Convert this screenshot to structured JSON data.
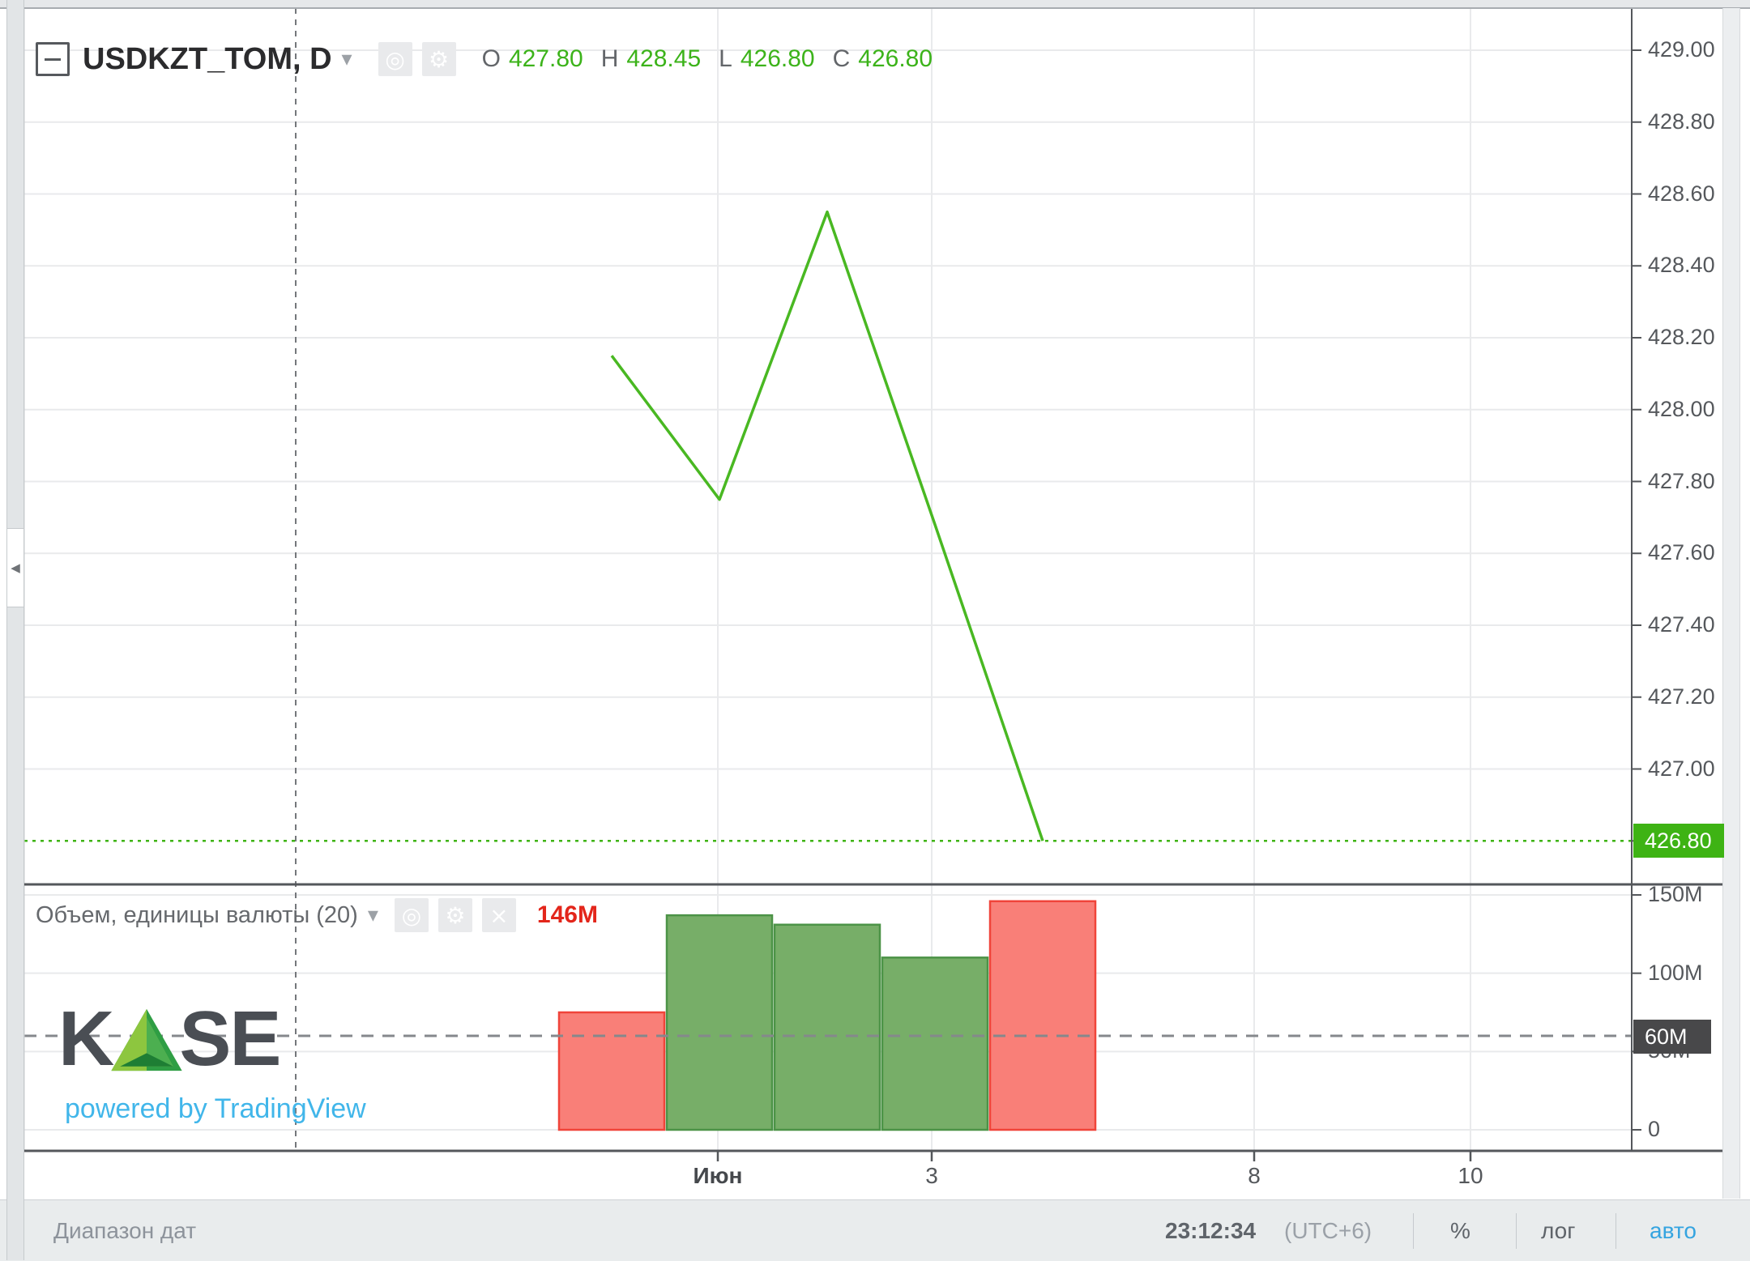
{
  "header": {
    "symbol_title": "USDKZT_TOM, D",
    "ohlc": {
      "o_label": "O",
      "o_value": "427.80",
      "h_label": "H",
      "h_value": "428.45",
      "l_label": "L",
      "l_value": "426.80",
      "c_label": "C",
      "c_value": "426.80"
    }
  },
  "volume_pane": {
    "title": "Объем, единицы валюты (20)",
    "last_value_label": "146M",
    "crosshair_badge": "60M"
  },
  "price_pane": {
    "last_price_badge": "426.80"
  },
  "logo": {
    "brand_k": "K",
    "brand_se": "SE",
    "powered_by": "powered by TradingView"
  },
  "status_bar": {
    "date_range": "Диапазон дат",
    "clock": "23:12:34",
    "utc": "(UTC+6)",
    "percent": "%",
    "log": "лог",
    "auto": "авто"
  },
  "icons": {
    "dropdown_caret": "▾",
    "eye": "◎",
    "gear": "⚙",
    "close": "×",
    "panel_collapse": "◀"
  },
  "colors": {
    "text_green": "#3cb31a",
    "line_green": "#49b822",
    "badge_green": "#3eb314",
    "vol_up_fill": "#77ae68",
    "vol_up_border": "#4c9347",
    "vol_down_fill": "#f97f78",
    "vol_down_border": "#f0443a",
    "value_red": "#e3261b",
    "badge_dark": "#48484a",
    "auto_blue": "#35a4e0",
    "tv_blue": "#41b6ea",
    "grid": "#e9eaec",
    "frame_dark": "#54575b",
    "crosshair": "#74777b"
  },
  "chart_data": {
    "type": "line",
    "title": "USDKZT_TOM, D — close line with volume",
    "series": [
      {
        "name": "USDKZT_TOM close",
        "type": "line",
        "values": [
          428.15,
          427.75,
          428.55,
          427.68,
          426.8
        ]
      },
      {
        "name": "Объем, единицы валюты (millions)",
        "type": "bar",
        "values": [
          75,
          137,
          131,
          110,
          146
        ],
        "directions": [
          "down",
          "up",
          "up",
          "up",
          "down"
        ]
      }
    ],
    "x_tick_labels": [
      "Июн",
      "3",
      "8",
      "10"
    ],
    "price_axis_ticks": [
      429.0,
      428.8,
      428.6,
      428.4,
      428.2,
      428.0,
      427.8,
      427.6,
      427.4,
      427.2,
      427.0
    ],
    "price_axis_tick_labels": [
      "429.00",
      "428.80",
      "428.60",
      "428.40",
      "428.20",
      "428.00",
      "427.80",
      "427.60",
      "427.40",
      "427.20",
      "427.00"
    ],
    "volume_axis_ticks": [
      150,
      100,
      50,
      0
    ],
    "volume_axis_tick_labels": [
      "150M",
      "100M",
      "50M",
      "0"
    ],
    "last_close": 426.8,
    "crosshair_volume_level_m": 60,
    "last_volume_m": 146,
    "ohlc": {
      "open": "427.80",
      "high": "428.45",
      "low": "426.80",
      "close": "426.80"
    },
    "grid": true,
    "legend_position": "top-left"
  }
}
